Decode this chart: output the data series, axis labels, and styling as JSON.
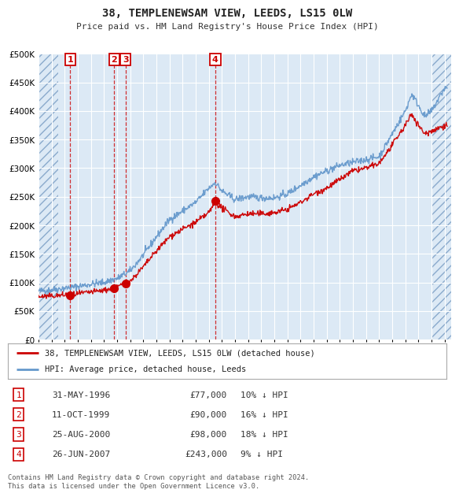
{
  "title": "38, TEMPLENEWSAM VIEW, LEEDS, LS15 0LW",
  "subtitle": "Price paid vs. HM Land Registry's House Price Index (HPI)",
  "background_color": "#dce9f5",
  "grid_color": "#ffffff",
  "red_line_color": "#cc0000",
  "blue_line_color": "#6699cc",
  "sale_points": [
    {
      "label": 1,
      "date_year": 1996.42,
      "price": 77000
    },
    {
      "label": 2,
      "date_year": 1999.78,
      "price": 90000
    },
    {
      "label": 3,
      "date_year": 2000.65,
      "price": 98000
    },
    {
      "label": 4,
      "date_year": 2007.49,
      "price": 243000
    }
  ],
  "legend_entries": [
    "38, TEMPLENEWSAM VIEW, LEEDS, LS15 0LW (detached house)",
    "HPI: Average price, detached house, Leeds"
  ],
  "table_data": [
    {
      "num": 1,
      "date": "31-MAY-1996",
      "price": "£77,000",
      "pct": "10% ↓ HPI"
    },
    {
      "num": 2,
      "date": "11-OCT-1999",
      "price": "£90,000",
      "pct": "16% ↓ HPI"
    },
    {
      "num": 3,
      "date": "25-AUG-2000",
      "price": "£98,000",
      "pct": "18% ↓ HPI"
    },
    {
      "num": 4,
      "date": "26-JUN-2007",
      "price": "£243,000",
      "pct": "9% ↓ HPI"
    }
  ],
  "footer": "Contains HM Land Registry data © Crown copyright and database right 2024.\nThis data is licensed under the Open Government Licence v3.0.",
  "ylim": [
    0,
    500000
  ],
  "xlim_start": 1994.0,
  "xlim_end": 2025.5,
  "blue_anchors_x": [
    1994.0,
    1995.0,
    1996.0,
    1997.0,
    1998.0,
    1999.0,
    2000.0,
    2001.0,
    2002.0,
    2003.0,
    2004.0,
    2005.0,
    2006.0,
    2007.0,
    2007.5,
    2008.0,
    2009.0,
    2010.0,
    2011.0,
    2012.0,
    2013.0,
    2014.0,
    2015.0,
    2016.0,
    2017.0,
    2018.0,
    2019.0,
    2020.0,
    2021.0,
    2022.0,
    2022.5,
    2023.0,
    2023.5,
    2024.0,
    2024.5,
    2025.0
  ],
  "blue_anchors_y": [
    85000,
    87000,
    90000,
    93000,
    97000,
    100000,
    107000,
    120000,
    148000,
    180000,
    210000,
    225000,
    240000,
    265000,
    275000,
    260000,
    245000,
    250000,
    248000,
    248000,
    255000,
    270000,
    285000,
    295000,
    305000,
    310000,
    315000,
    320000,
    360000,
    400000,
    430000,
    410000,
    390000,
    400000,
    420000,
    440000
  ],
  "red_anchors_x": [
    1994.0,
    1995.0,
    1996.0,
    1997.0,
    1998.0,
    1999.0,
    2000.0,
    2001.0,
    2002.0,
    2003.0,
    2004.0,
    2005.0,
    2006.0,
    2007.0,
    2007.5,
    2008.0,
    2009.0,
    2010.0,
    2011.0,
    2012.0,
    2013.0,
    2014.0,
    2015.0,
    2016.0,
    2017.0,
    2018.0,
    2019.0,
    2020.0,
    2021.0,
    2022.0,
    2022.5,
    2023.0,
    2023.5,
    2024.0,
    2024.5,
    2025.0
  ],
  "red_anchors_y": [
    75000,
    76000,
    78000,
    80000,
    83000,
    86000,
    92000,
    102000,
    127000,
    155000,
    180000,
    193000,
    205000,
    222000,
    240000,
    230000,
    215000,
    220000,
    220000,
    222000,
    228000,
    240000,
    255000,
    265000,
    280000,
    295000,
    300000,
    308000,
    340000,
    375000,
    395000,
    375000,
    360000,
    365000,
    370000,
    375000
  ]
}
